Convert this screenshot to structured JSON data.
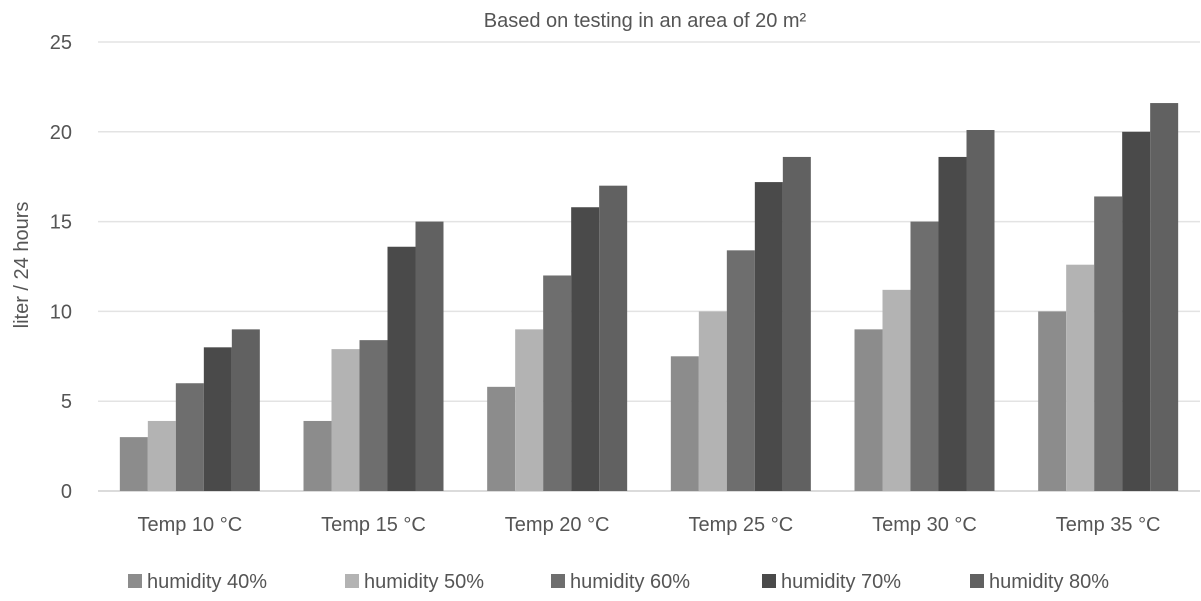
{
  "chart_data": {
    "type": "bar",
    "title": "",
    "subtitle": "Based on testing in an area of 20 m²",
    "xlabel": "",
    "ylabel": "liter / 24 hours",
    "ylim": [
      0,
      25
    ],
    "yticks": [
      0,
      5,
      10,
      15,
      20,
      25
    ],
    "grid": true,
    "legend_position": "bottom",
    "categories": [
      "Temp 10 °C",
      "Temp 15 °C",
      "Temp 20 °C",
      "Temp 25 °C",
      "Temp 30 °C",
      "Temp 35 °C"
    ],
    "series": [
      {
        "name": "humidity 40%",
        "color": "#8c8c8c",
        "values": [
          3,
          3.9,
          5.8,
          7.5,
          9,
          10
        ]
      },
      {
        "name": "humidity 50%",
        "color": "#b3b3b3",
        "values": [
          3.9,
          7.9,
          9,
          10,
          11.2,
          12.6
        ]
      },
      {
        "name": "humidity 60%",
        "color": "#6e6e6e",
        "values": [
          6,
          8.4,
          12,
          13.4,
          15,
          16.4
        ]
      },
      {
        "name": "humidity 70%",
        "color": "#4a4a4a",
        "values": [
          8,
          13.6,
          15.8,
          17.2,
          18.6,
          20
        ]
      },
      {
        "name": "humidity 80%",
        "color": "#616161",
        "values": [
          9,
          15,
          17,
          18.6,
          20.1,
          21.6
        ]
      }
    ]
  }
}
